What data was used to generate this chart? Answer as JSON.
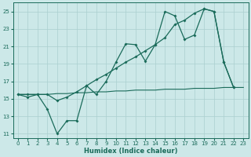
{
  "xlabel": "Humidex (Indice chaleur)",
  "ylabel": "",
  "bg_color": "#cce8e8",
  "grid_color": "#aacfcf",
  "line_color": "#1a6b5a",
  "xlim": [
    -0.5,
    23.5
  ],
  "ylim": [
    10.5,
    26.0
  ],
  "xticks": [
    0,
    1,
    2,
    3,
    4,
    5,
    6,
    7,
    8,
    9,
    10,
    11,
    12,
    13,
    14,
    15,
    16,
    17,
    18,
    19,
    20,
    21,
    22,
    23
  ],
  "yticks": [
    11,
    13,
    15,
    17,
    19,
    21,
    23,
    25
  ],
  "line1_x": [
    0,
    1,
    2,
    3,
    4,
    5,
    6,
    7,
    8,
    9,
    10,
    11,
    12,
    13,
    14,
    15,
    16,
    17,
    18,
    19,
    20,
    21,
    22
  ],
  "line1_y": [
    15.5,
    15.5,
    15.5,
    15.5,
    14.8,
    15.2,
    15.8,
    16.5,
    17.2,
    17.8,
    18.5,
    19.2,
    19.8,
    20.5,
    21.2,
    22.0,
    23.5,
    24.0,
    24.8,
    25.3,
    25.0,
    19.2,
    16.3
  ],
  "line2_x": [
    0,
    1,
    2,
    3,
    4,
    5,
    6,
    7,
    8,
    9,
    10,
    11,
    12,
    13,
    14,
    15,
    16,
    17,
    18,
    19,
    20,
    21,
    22
  ],
  "line2_y": [
    15.5,
    15.2,
    15.5,
    13.8,
    11.0,
    12.5,
    12.5,
    16.5,
    15.5,
    17.0,
    19.2,
    21.3,
    21.2,
    19.3,
    21.2,
    25.0,
    24.5,
    21.8,
    22.3,
    25.3,
    25.0,
    19.2,
    16.3
  ],
  "line3_x": [
    0,
    1,
    2,
    3,
    4,
    5,
    6,
    7,
    8,
    9,
    10,
    11,
    12,
    13,
    14,
    15,
    16,
    17,
    18,
    19,
    20,
    21,
    22,
    23
  ],
  "line3_y": [
    15.5,
    15.5,
    15.5,
    15.5,
    15.6,
    15.6,
    15.7,
    15.7,
    15.8,
    15.8,
    15.9,
    15.9,
    16.0,
    16.0,
    16.0,
    16.1,
    16.1,
    16.1,
    16.2,
    16.2,
    16.2,
    16.3,
    16.3,
    16.3
  ]
}
